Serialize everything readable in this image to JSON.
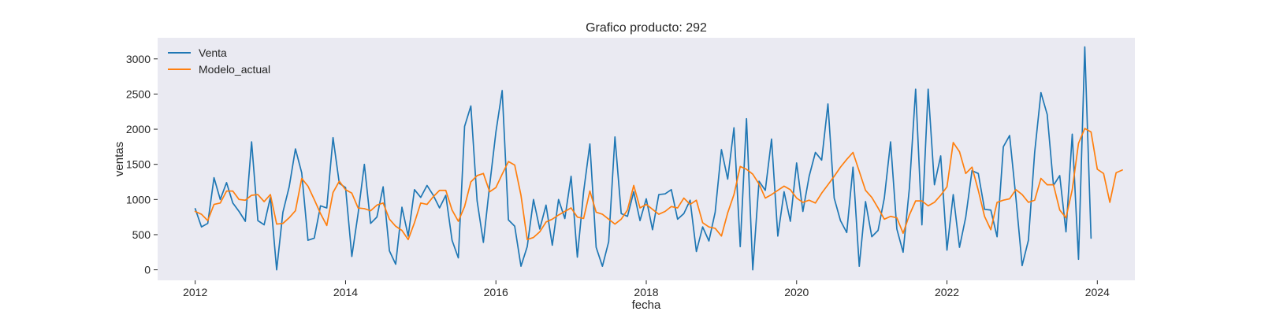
{
  "chart_data": {
    "type": "line",
    "title": "Grafico producto: 292",
    "xlabel": "fecha",
    "ylabel": "ventas",
    "x_start": "2012-01",
    "x_frequency": "monthly",
    "xlim": [
      "2011-07",
      "2024-07"
    ],
    "ylim": [
      -150,
      3300
    ],
    "xticks": [
      "2012",
      "2014",
      "2016",
      "2018",
      "2020",
      "2022",
      "2024"
    ],
    "yticks": [
      0,
      500,
      1000,
      1500,
      2000,
      2500,
      3000
    ],
    "grid": false,
    "background_color": "#eaeaf2",
    "legend_position": "top-left",
    "series": [
      {
        "name": "Venta",
        "color": "#1f77b4",
        "values": [
          870,
          610,
          660,
          1310,
          1000,
          1240,
          950,
          830,
          690,
          1820,
          700,
          640,
          1030,
          0,
          820,
          1180,
          1720,
          1380,
          420,
          450,
          910,
          880,
          1880,
          1230,
          1170,
          190,
          800,
          1500,
          660,
          750,
          1180,
          270,
          80,
          890,
          480,
          1140,
          1030,
          1200,
          1060,
          880,
          1060,
          420,
          170,
          2040,
          2330,
          980,
          390,
          1200,
          1960,
          2550,
          710,
          620,
          50,
          330,
          1000,
          580,
          920,
          350,
          1000,
          730,
          1330,
          180,
          1110,
          1790,
          320,
          50,
          400,
          1890,
          800,
          760,
          1110,
          700,
          1010,
          570,
          1070,
          1080,
          1140,
          720,
          800,
          990,
          260,
          610,
          410,
          820,
          1710,
          1290,
          2020,
          330,
          2150,
          0,
          1260,
          1130,
          1860,
          480,
          1110,
          690,
          1520,
          830,
          1330,
          1670,
          1560,
          2360,
          1020,
          700,
          530,
          1460,
          50,
          970,
          470,
          560,
          1020,
          1820,
          580,
          250,
          1160,
          2570,
          640,
          2570,
          1210,
          1620,
          280,
          1070,
          320,
          750,
          1410,
          1370,
          860,
          850,
          470,
          1750,
          1910,
          1030,
          60,
          420,
          1670,
          2520,
          2210,
          1200,
          1340,
          540,
          1930,
          150,
          3170,
          450
        ]
      },
      {
        "name": "Modelo_actual",
        "color": "#ff7f0e",
        "values": [
          830,
          790,
          700,
          930,
          950,
          1120,
          1120,
          1000,
          990,
          1060,
          1070,
          970,
          1070,
          650,
          660,
          740,
          840,
          1300,
          1190,
          1000,
          800,
          630,
          1100,
          1260,
          1140,
          1090,
          880,
          870,
          840,
          920,
          950,
          720,
          620,
          560,
          430,
          670,
          950,
          930,
          1040,
          1130,
          1130,
          850,
          690,
          900,
          1250,
          1340,
          1370,
          1110,
          1170,
          1360,
          1540,
          1490,
          1060,
          430,
          460,
          540,
          680,
          720,
          780,
          830,
          880,
          750,
          730,
          1120,
          820,
          790,
          720,
          650,
          720,
          850,
          1200,
          880,
          930,
          860,
          790,
          830,
          900,
          880,
          1020,
          930,
          990,
          670,
          610,
          590,
          480,
          810,
          1070,
          1470,
          1430,
          1360,
          1220,
          1020,
          1070,
          1130,
          1190,
          1140,
          1020,
          960,
          990,
          950,
          1090,
          1210,
          1330,
          1460,
          1570,
          1670,
          1400,
          1130,
          1030,
          880,
          720,
          760,
          740,
          520,
          780,
          980,
          980,
          910,
          960,
          1060,
          1180,
          1810,
          1680,
          1370,
          1460,
          1130,
          760,
          570,
          960,
          990,
          1010,
          1140,
          1070,
          960,
          990,
          1300,
          1210,
          1210,
          850,
          740,
          1140,
          1800,
          2010,
          1960,
          1430,
          1370,
          960,
          1380,
          1420
        ]
      }
    ]
  }
}
